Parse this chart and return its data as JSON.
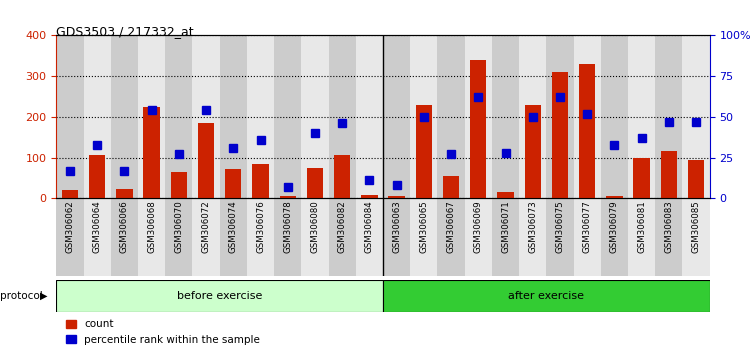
{
  "title": "GDS3503 / 217332_at",
  "categories": [
    "GSM306062",
    "GSM306064",
    "GSM306066",
    "GSM306068",
    "GSM306070",
    "GSM306072",
    "GSM306074",
    "GSM306076",
    "GSM306078",
    "GSM306080",
    "GSM306082",
    "GSM306084",
    "GSM306063",
    "GSM306065",
    "GSM306067",
    "GSM306069",
    "GSM306071",
    "GSM306073",
    "GSM306075",
    "GSM306077",
    "GSM306079",
    "GSM306081",
    "GSM306083",
    "GSM306085"
  ],
  "bar_values": [
    20,
    105,
    22,
    225,
    65,
    185,
    73,
    85,
    5,
    75,
    105,
    8,
    5,
    230,
    55,
    340,
    15,
    230,
    310,
    330,
    5,
    100,
    115,
    95
  ],
  "percentile_values": [
    17,
    33,
    17,
    54,
    27,
    54,
    31,
    36,
    7,
    40,
    46,
    11,
    8,
    50,
    27,
    62,
    28,
    50,
    62,
    52,
    33,
    37,
    47,
    47
  ],
  "before_exercise_count": 12,
  "after_exercise_count": 12,
  "bar_color": "#cc2200",
  "percentile_color": "#0000cc",
  "left_ylim": [
    0,
    400
  ],
  "right_ylim": [
    0,
    100
  ],
  "left_yticks": [
    0,
    100,
    200,
    300,
    400
  ],
  "right_yticks": [
    0,
    25,
    50,
    75,
    100
  ],
  "right_yticklabels": [
    "0",
    "25",
    "50",
    "75",
    "100%"
  ],
  "before_color": "#ccffcc",
  "after_color": "#33cc33",
  "col_colors": [
    "#cccccc",
    "#e8e8e8"
  ],
  "protocol_label": "protocol",
  "before_label": "before exercise",
  "after_label": "after exercise",
  "legend_count": "count",
  "legend_percentile": "percentile rank within the sample",
  "bg_color": "#ffffff",
  "bar_width": 0.6
}
